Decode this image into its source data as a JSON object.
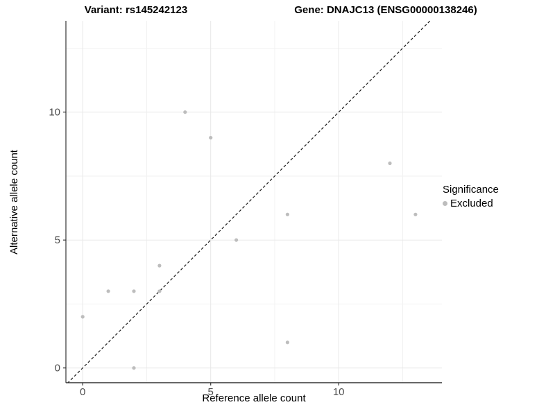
{
  "titles": {
    "variant": "Variant: rs145242123",
    "gene": "Gene: DNAJC13 (ENSG00000138246)"
  },
  "legend": {
    "title": "Significance",
    "items": [
      {
        "label": "Excluded",
        "color": "#bdbdbd"
      }
    ]
  },
  "chart_data": {
    "type": "scatter",
    "xlabel": "Reference allele count",
    "ylabel": "Alternative allele count",
    "x_ticks": [
      0,
      5,
      10
    ],
    "y_ticks": [
      0,
      5,
      10
    ],
    "x_minor": [
      2.5,
      7.5,
      12.5
    ],
    "y_minor": [
      2.5,
      7.5,
      12.5
    ],
    "xlim": [
      -0.65,
      14.05
    ],
    "ylim": [
      -0.58,
      13.6
    ],
    "grid": true,
    "identity_line": {
      "slope": 1,
      "intercept": 0,
      "style": "dashed"
    },
    "series": [
      {
        "name": "Excluded",
        "color": "#bdbdbd",
        "points": [
          [
            0,
            2
          ],
          [
            1,
            3
          ],
          [
            2,
            0
          ],
          [
            2,
            3
          ],
          [
            3,
            3
          ],
          [
            3,
            4
          ],
          [
            4,
            10
          ],
          [
            5,
            9
          ],
          [
            6,
            5
          ],
          [
            8,
            1
          ],
          [
            8,
            6
          ],
          [
            12,
            8
          ],
          [
            13,
            6
          ]
        ]
      }
    ]
  },
  "colors": {
    "point": "#bdbdbd",
    "axis_line": "#333333",
    "tick_label": "#4d4d4d",
    "grid_major": "#e8e8e8",
    "grid_minor": "#f2f2f2",
    "line": "#1a1a1a"
  }
}
